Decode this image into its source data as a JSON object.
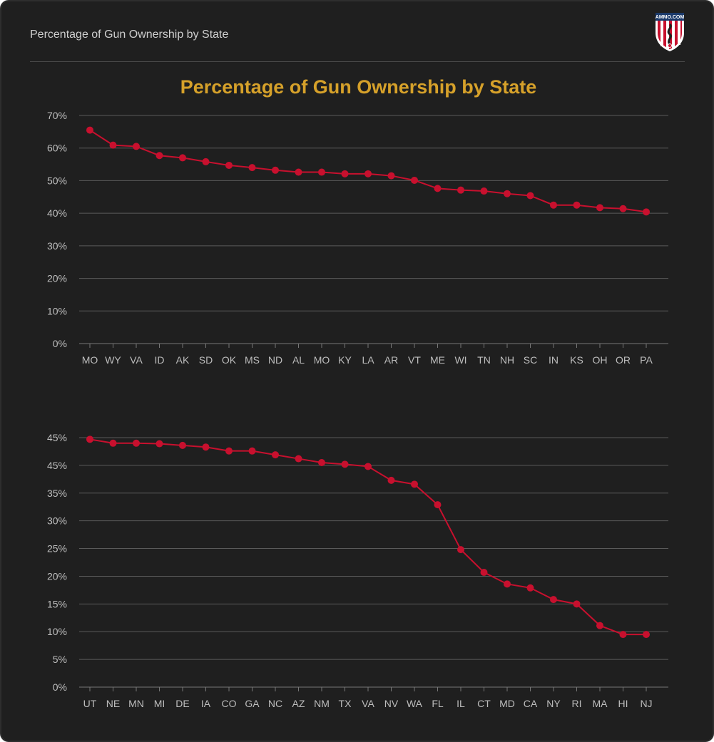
{
  "header": {
    "title": "Percentage of Gun Ownership by State"
  },
  "logo": {
    "text": "AMMO.COM",
    "icon": "ammo-shield-logo"
  },
  "colors": {
    "line": "#c8102e",
    "title": "#d6a12a",
    "grid": "#5a5a5a",
    "background": "#1f1f1f"
  },
  "chart_data": [
    {
      "type": "line",
      "title": "Percentage of Gun Ownership by State",
      "xlabel": "",
      "ylabel": "",
      "ylim": [
        0,
        70
      ],
      "yticks": [
        "0%",
        "10%",
        "20%",
        "30%",
        "40%",
        "50%",
        "60%",
        "70%"
      ],
      "grid": true,
      "categories": [
        "MO",
        "WY",
        "VA",
        "ID",
        "AK",
        "SD",
        "OK",
        "MS",
        "ND",
        "AL",
        "MO",
        "KY",
        "LA",
        "AR",
        "VT",
        "ME",
        "WI",
        "TN",
        "NH",
        "SC",
        "IN",
        "KS",
        "OH",
        "OR",
        "PA"
      ],
      "values": [
        65.5,
        60.9,
        60.5,
        57.7,
        57.0,
        55.8,
        54.7,
        54.0,
        53.2,
        52.6,
        52.6,
        52.1,
        52.1,
        51.5,
        50.1,
        47.6,
        47.1,
        46.8,
        46.0,
        45.4,
        42.5,
        42.5,
        41.7,
        41.4,
        40.4
      ]
    },
    {
      "type": "line",
      "title": "",
      "xlabel": "",
      "ylabel": "",
      "ylim": [
        0,
        45
      ],
      "yticks": [
        "0%",
        "5%",
        "10%",
        "15%",
        "20%",
        "25%",
        "30%",
        "35%",
        "45%",
        "45%"
      ],
      "grid": true,
      "categories": [
        "UT",
        "NE",
        "MN",
        "MI",
        "DE",
        "IA",
        "CO",
        "GA",
        "NC",
        "AZ",
        "NM",
        "TX",
        "VA",
        "NV",
        "WA",
        "FL",
        "IL",
        "CT",
        "MD",
        "CA",
        "NY",
        "RI",
        "MA",
        "HI",
        "NJ"
      ],
      "values": [
        44.7,
        44.0,
        44.0,
        43.9,
        43.6,
        43.3,
        42.6,
        42.6,
        41.9,
        41.2,
        40.5,
        40.2,
        39.8,
        37.3,
        36.6,
        32.9,
        24.8,
        20.7,
        18.6,
        17.9,
        15.8,
        15.0,
        11.1,
        9.5,
        9.5
      ]
    }
  ]
}
